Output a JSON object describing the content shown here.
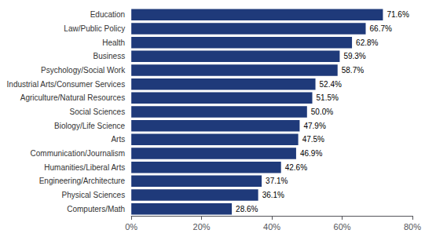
{
  "chart_data": {
    "type": "bar",
    "orientation": "horizontal",
    "categories": [
      "Computers/Math",
      "Physical Sciences",
      "Engineering/Architecture",
      "Humanities/Liberal Arts",
      "Communication/Journalism",
      "Arts",
      "Biology/Life Science",
      "Social Sciences",
      "Agriculture/Natural Resources",
      "Industrial Arts/Consumer Services",
      "Psychology/Social Work",
      "Business",
      "Health",
      "Law/Public Policy",
      "Education"
    ],
    "values": [
      28.6,
      36.1,
      37.1,
      42.6,
      46.9,
      47.5,
      47.9,
      50.0,
      51.5,
      52.4,
      58.7,
      59.3,
      62.8,
      66.7,
      71.6
    ],
    "value_labels": [
      "28.6%",
      "36.1%",
      "37.1%",
      "42.6%",
      "46.9%",
      "47.5%",
      "47.9%",
      "50.0%",
      "51.5%",
      "52.4%",
      "58.7%",
      "59.3%",
      "62.8%",
      "66.7%",
      "71.6%"
    ],
    "data_labels": true,
    "color": "#1F3A7A",
    "xlim": [
      0,
      80
    ],
    "xticks": [
      {
        "value": 0,
        "label": "0%"
      },
      {
        "value": 20,
        "label": "20%"
      },
      {
        "value": 40,
        "label": "40%"
      },
      {
        "value": 60,
        "label": "60%"
      },
      {
        "value": 80,
        "label": "80%"
      }
    ],
    "grid": false
  }
}
